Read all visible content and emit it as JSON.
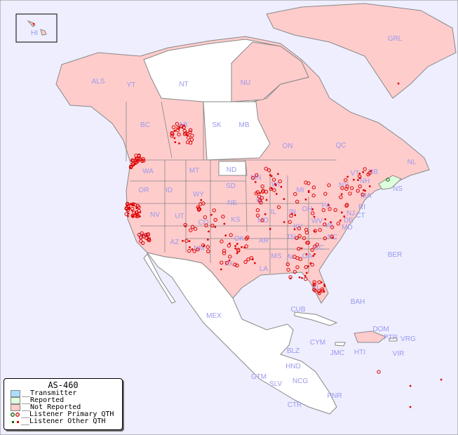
{
  "colors": {
    "ocean": "#eeeeff",
    "not_reported": "#ffcccc",
    "reported": "#ddffdd",
    "transmitter": "#aaddff",
    "no_data": "#ffffff",
    "label": "#9999ee",
    "listener": "#dd0000",
    "border": "#888888"
  },
  "legend": {
    "title": "AS-460",
    "items": [
      {
        "label": "__Transmitter",
        "swatch": "#aaddff"
      },
      {
        "label": "__Reported",
        "swatch": "#ddffdd"
      },
      {
        "label": "__Not Reported",
        "swatch": "#ffcccc"
      },
      {
        "label": "__Listener Primary QTH",
        "marker": "circle"
      },
      {
        "label": "__Listener Other QTH",
        "marker": "square"
      }
    ]
  },
  "regions": [
    "HI",
    "ALS",
    "YT",
    "NT",
    "NU",
    "GRL",
    "BC",
    "AB",
    "SK",
    "MB",
    "ON",
    "QC",
    "NL",
    "NB",
    "NS",
    "WA",
    "OR",
    "ID",
    "MT",
    "WY",
    "ND",
    "SD",
    "NE",
    "MN",
    "IA",
    "WI",
    "MI",
    "IL",
    "IN",
    "OH",
    "PA",
    "NY",
    "VT",
    "NH",
    "MA",
    "CT",
    "RI",
    "NJ",
    "DE",
    "MD",
    "VA",
    "WV",
    "KY",
    "TN",
    "NC",
    "SC",
    "GA",
    "AL",
    "MS",
    "LA",
    "AR",
    "MO",
    "KS",
    "OK",
    "TX",
    "NM",
    "AZ",
    "CO",
    "UT",
    "NV",
    "CA",
    "FL",
    "MEX",
    "CUB",
    "BAH",
    "CYM",
    "JMC",
    "HTI",
    "DOM",
    "PTR",
    "VRG",
    "VIR",
    "BER",
    "BLZ",
    "GTM",
    "HND",
    "SLV",
    "NCG",
    "CTR",
    "PNR"
  ]
}
